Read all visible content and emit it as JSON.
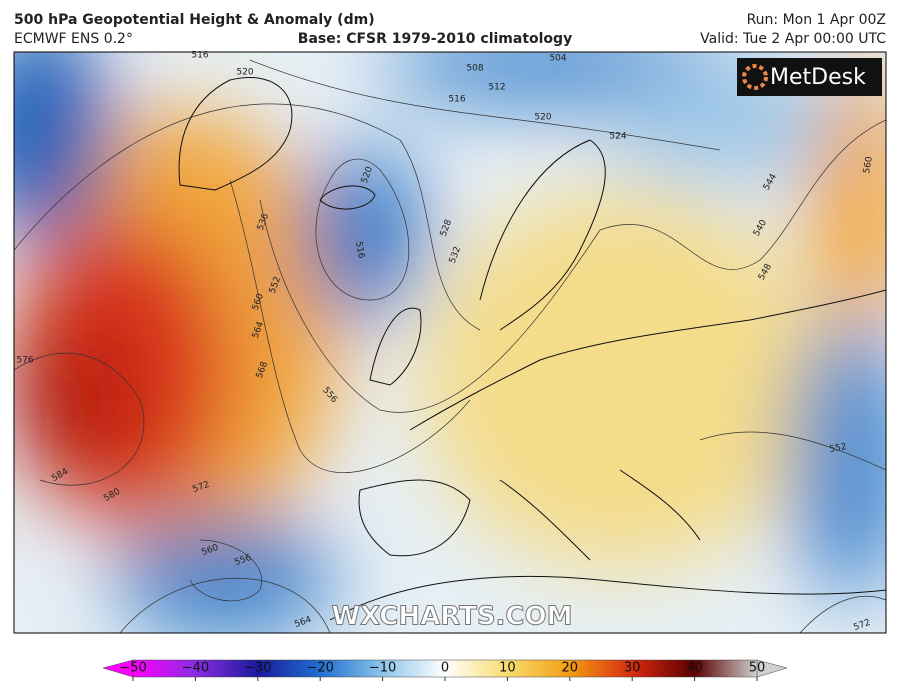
{
  "header": {
    "title": "500 hPa Geopotential Height & Anomaly (dm)",
    "model": "ECMWF ENS 0.2°",
    "base": "Base: CFSR 1979-2010 climatology",
    "run": "Run: Mon 1 Apr 00Z",
    "valid": "Valid: Tue 2 Apr 00:00 UTC"
  },
  "logo": "MetDesk",
  "watermark": "WXCHARTS.COM",
  "contour_labels": [
    516,
    520,
    508,
    512,
    516,
    520,
    524,
    504,
    536,
    552,
    560,
    564,
    568,
    576,
    584,
    580,
    572,
    556,
    560,
    556,
    564,
    516,
    520,
    528,
    532,
    540,
    544,
    548,
    552,
    572,
    560
  ],
  "colorbar": {
    "lim": [
      -50,
      50
    ],
    "ticks": [
      {
        "value": -50,
        "label": "−50"
      },
      {
        "value": -40,
        "label": "−40"
      },
      {
        "value": -30,
        "label": "−30"
      },
      {
        "value": -20,
        "label": "−20"
      },
      {
        "value": -10,
        "label": "−10"
      },
      0,
      10,
      20,
      30,
      40,
      50
    ]
  }
}
